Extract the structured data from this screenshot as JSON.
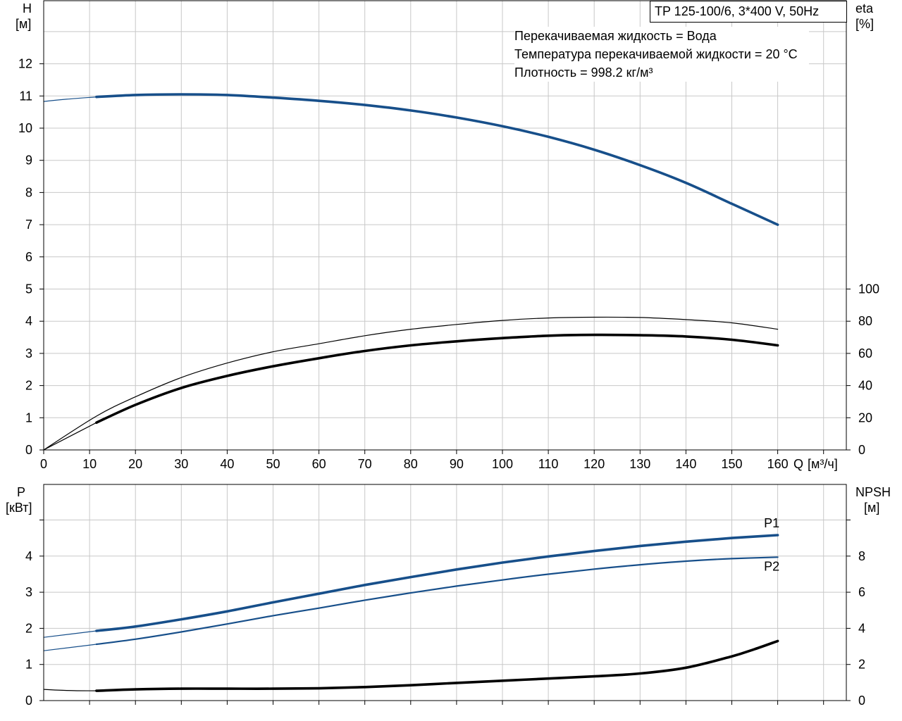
{
  "title": "TP 125-100/6, 3*400 V, 50Hz",
  "info_lines": [
    "Перекачиваемая жидкость = Вода",
    "Температура перекачиваемой жидкости = 20 °C",
    "Плотность = 998.2 кг/м³"
  ],
  "colors": {
    "blue": "#174f8a",
    "black": "#000000",
    "grid": "#c8c8c8"
  },
  "chart_data": [
    {
      "type": "line",
      "panel": "upper",
      "left_axis": {
        "label": "H",
        "unit": "[м]",
        "ylim": [
          0,
          13
        ],
        "ticks": [
          0,
          1,
          2,
          3,
          4,
          5,
          6,
          7,
          8,
          9,
          10,
          11,
          12
        ]
      },
      "right_axis": {
        "label": "eta",
        "unit": "[%]",
        "ylim": [
          0,
          100
        ],
        "ticks": [
          0,
          20,
          40,
          60,
          80,
          100
        ]
      },
      "x_axis": {
        "label": "Q",
        "unit": "[м³/ч]",
        "xlim": [
          0,
          174
        ],
        "ticks": [
          0,
          10,
          20,
          30,
          40,
          50,
          60,
          70,
          80,
          90,
          100,
          110,
          120,
          130,
          140,
          150,
          160
        ]
      },
      "grid": true,
      "series": [
        {
          "name": "H",
          "axis": "left",
          "color": "#174f8a",
          "style": "bold",
          "x": [
            11.5,
            20,
            30,
            40,
            50,
            60,
            70,
            80,
            90,
            100,
            110,
            120,
            130,
            140,
            150,
            160
          ],
          "y": [
            10.97,
            11.03,
            11.05,
            11.03,
            10.95,
            10.85,
            10.72,
            10.55,
            10.33,
            10.06,
            9.73,
            9.33,
            8.85,
            8.3,
            7.65,
            7.0
          ]
        },
        {
          "name": "H (extrapolated)",
          "axis": "left",
          "color": "#174f8a",
          "style": "thin",
          "x": [
            0,
            5,
            11.5
          ],
          "y": [
            10.83,
            10.9,
            10.97
          ]
        },
        {
          "name": "eta",
          "axis": "right",
          "color": "#000000",
          "style": "thin",
          "x": [
            0,
            11.5,
            20,
            30,
            40,
            50,
            60,
            70,
            80,
            90,
            100,
            110,
            120,
            130,
            140,
            150,
            160
          ],
          "y": [
            0,
            21,
            33,
            45,
            54,
            61,
            66,
            71,
            75,
            78,
            80.5,
            82,
            82.5,
            82.3,
            81,
            79,
            75
          ]
        },
        {
          "name": "eta (total)",
          "axis": "right",
          "color": "#000000",
          "style": "bold",
          "x": [
            11.5,
            20,
            30,
            40,
            50,
            60,
            70,
            80,
            90,
            100,
            110,
            120,
            130,
            140,
            150,
            160
          ],
          "y": [
            17,
            28,
            38.5,
            46,
            52,
            57,
            61.5,
            65,
            67.5,
            69.5,
            71,
            71.5,
            71.3,
            70.5,
            68.5,
            65
          ]
        },
        {
          "name": "eta (total, extrapolated)",
          "axis": "right",
          "color": "#000000",
          "style": "thin",
          "x": [
            0,
            11.5
          ],
          "y": [
            0,
            17
          ]
        }
      ]
    },
    {
      "type": "line",
      "panel": "lower",
      "left_axis": {
        "label": "P",
        "unit": "[кВт]",
        "ylim": [
          0,
          5
        ],
        "ticks": [
          0,
          1,
          2,
          3,
          4
        ]
      },
      "right_axis": {
        "label": "NPSH",
        "unit": "[м]",
        "ylim": [
          0,
          10
        ],
        "ticks": [
          0,
          2,
          4,
          6,
          8
        ]
      },
      "x_axis": {
        "xlim": [
          0,
          174
        ]
      },
      "grid": true,
      "series": [
        {
          "name": "P1",
          "axis": "left",
          "color": "#174f8a",
          "style": "bold",
          "x": [
            11.5,
            20,
            30,
            40,
            50,
            60,
            70,
            80,
            90,
            100,
            110,
            120,
            130,
            140,
            150,
            160
          ],
          "y": [
            1.93,
            2.05,
            2.25,
            2.47,
            2.72,
            2.96,
            3.2,
            3.42,
            3.63,
            3.82,
            3.99,
            4.14,
            4.28,
            4.4,
            4.5,
            4.58
          ]
        },
        {
          "name": "P1 (extrapolated)",
          "axis": "left",
          "color": "#174f8a",
          "style": "thin",
          "x": [
            0,
            11.5
          ],
          "y": [
            1.75,
            1.93
          ]
        },
        {
          "name": "P2",
          "axis": "left",
          "color": "#174f8a",
          "style": "normal",
          "x": [
            11.5,
            20,
            30,
            40,
            50,
            60,
            70,
            80,
            90,
            100,
            110,
            120,
            130,
            140,
            150,
            160
          ],
          "y": [
            1.56,
            1.7,
            1.9,
            2.12,
            2.35,
            2.56,
            2.78,
            2.98,
            3.17,
            3.34,
            3.5,
            3.64,
            3.76,
            3.86,
            3.93,
            3.97
          ]
        },
        {
          "name": "P2 (extrapolated)",
          "axis": "left",
          "color": "#174f8a",
          "style": "thin",
          "x": [
            0,
            11.5
          ],
          "y": [
            1.38,
            1.56
          ]
        },
        {
          "name": "NPSH",
          "axis": "right",
          "color": "#000000",
          "style": "bold",
          "x": [
            11.5,
            20,
            30,
            40,
            50,
            60,
            70,
            80,
            90,
            100,
            110,
            120,
            130,
            140,
            150,
            155,
            160
          ],
          "y": [
            0.54,
            0.62,
            0.66,
            0.66,
            0.66,
            0.68,
            0.75,
            0.85,
            0.98,
            1.1,
            1.22,
            1.34,
            1.5,
            1.82,
            2.45,
            2.85,
            3.3
          ]
        },
        {
          "name": "NPSH (extrapolated)",
          "axis": "right",
          "color": "#000000",
          "style": "thin",
          "x": [
            0,
            5,
            11.5
          ],
          "y": [
            0.62,
            0.56,
            0.54
          ]
        }
      ],
      "curve_labels": [
        {
          "text": "P1",
          "x": 157,
          "y": 4.8
        },
        {
          "text": "P2",
          "x": 157,
          "y": 3.6
        }
      ]
    }
  ]
}
